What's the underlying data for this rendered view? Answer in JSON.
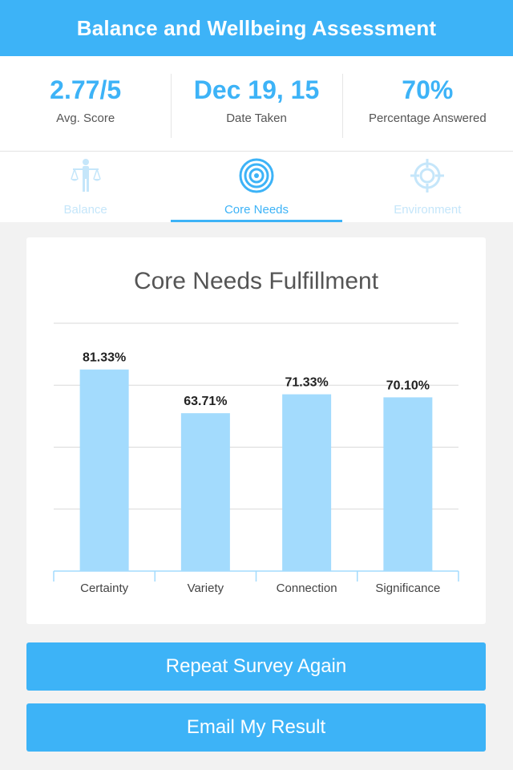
{
  "header": {
    "title": "Balance and Wellbeing Assessment"
  },
  "stats": [
    {
      "value": "2.77/5",
      "label": "Avg. Score"
    },
    {
      "value": "Dec 19, 15",
      "label": "Date Taken"
    },
    {
      "value": "70%",
      "label": "Percentage Answered"
    }
  ],
  "tabs": [
    {
      "label": "Balance",
      "icon": "balance-person-icon",
      "active": false
    },
    {
      "label": "Core Needs",
      "icon": "target-icon",
      "active": true
    },
    {
      "label": "Environment",
      "icon": "crosshair-icon",
      "active": false
    }
  ],
  "colors": {
    "accent": "#3db3f7",
    "bar": "#a3dbfd",
    "tab_inactive": "#c5e6fa"
  },
  "chart_data": {
    "type": "bar",
    "title": "Core Needs Fulfillment",
    "categories": [
      "Certainty",
      "Variety",
      "Connection",
      "Significance"
    ],
    "values": [
      81.33,
      63.71,
      71.33,
      70.1
    ],
    "data_labels": [
      "81.33%",
      "63.71%",
      "71.33%",
      "70.10%"
    ],
    "ylim": [
      0,
      100
    ],
    "grid": true,
    "legend": "none"
  },
  "buttons": {
    "repeat_label": "Repeat Survey Again",
    "email_label": "Email My Result"
  }
}
